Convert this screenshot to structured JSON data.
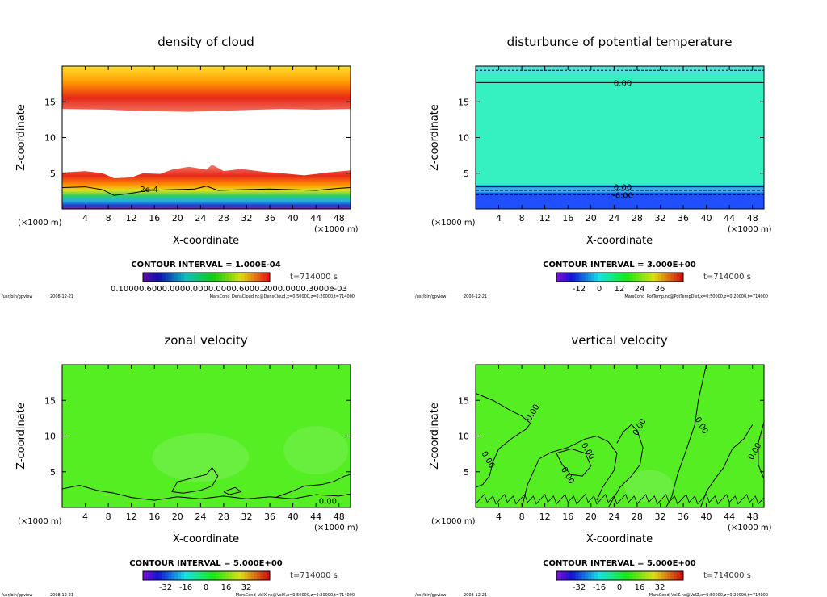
{
  "footer": {
    "path": "/usr/bin/gpview",
    "date": "2008-12-21"
  },
  "colors": {
    "cloud_top": "#ffd400",
    "cloud_band": "#e8281a",
    "cloud_fade": "#ff7a60",
    "theta_top": "#4fe0d8",
    "theta_main": "#35f0c0",
    "theta_low": "#1e50ff",
    "green_field": "#55ee22",
    "green_light": "#80f060",
    "low_blue": "#3020c0"
  },
  "chart_data": [
    {
      "type": "heatmap",
      "title": "density of cloud",
      "xlabel": "X-coordinate",
      "ylabel": "Z-coordinate",
      "xunit": "(×1000 m)",
      "yunit": "(×1000 m)",
      "xlim": [
        0,
        50
      ],
      "ylim": [
        0,
        20
      ],
      "xticks": [
        4,
        8,
        12,
        16,
        20,
        24,
        28,
        32,
        36,
        40,
        44,
        48
      ],
      "yticks": [
        5,
        10,
        15
      ],
      "contour_interval": "CONTOUR INTERVAL = 1.000E-04",
      "time": "t=714000 s",
      "contour_labels": [
        "2e-4"
      ],
      "colorbar_labels": "0.10000.6000.0000.0000.0000.6000.2000.0000.3000e-03",
      "colorbar_colors": [
        "#a020a0",
        "#2020c0",
        "#1f70ff",
        "#20c0c0",
        "#30e030",
        "#e0e020",
        "#ff8000",
        "#e02020",
        "#900000"
      ],
      "footer_file": "MarsCond_DensCloud.nc@DensCloud,x=0:50000,z=0:20000,t=714000"
    },
    {
      "type": "heatmap",
      "title": "disturbunce of potential temperature",
      "xlabel": "X-coordinate",
      "ylabel": "Z-coordinate",
      "xunit": "(×1000 m)",
      "yunit": "(×1000 m)",
      "xlim": [
        0,
        50
      ],
      "ylim": [
        0,
        20
      ],
      "xticks": [
        4,
        8,
        12,
        16,
        20,
        24,
        28,
        32,
        36,
        40,
        44,
        48
      ],
      "yticks": [
        5,
        10,
        15
      ],
      "contour_interval": "CONTOUR INTERVAL = 3.000E+00",
      "time": "t=714000 s",
      "contour_lines": [
        {
          "z": 17.7,
          "label": "0.00"
        },
        {
          "z": 3.1,
          "label": "0.00"
        },
        {
          "z": 2.0,
          "label": "-6.00"
        }
      ],
      "colorbar_ticks": [
        "-12",
        "0",
        "12",
        "24",
        "36"
      ],
      "footer_file": "MarsCond_PotTemp.nc@PotTempDist,x=0:50000,z=0:20000,t=714000"
    },
    {
      "type": "heatmap",
      "title": "zonal velocity",
      "xlabel": "X-coordinate",
      "ylabel": "Z-coordinate",
      "xunit": "(×1000 m)",
      "yunit": "(×1000 m)",
      "xlim": [
        0,
        50
      ],
      "ylim": [
        0,
        20
      ],
      "xticks": [
        4,
        8,
        12,
        16,
        20,
        24,
        28,
        32,
        36,
        40,
        44,
        48
      ],
      "yticks": [
        5,
        10,
        15
      ],
      "contour_interval": "CONTOUR INTERVAL = 5.000E+00",
      "time": "t=714000 s",
      "contour_labels": [
        "0.00"
      ],
      "colorbar_ticks": [
        "-32",
        "-16",
        "0",
        "16",
        "32"
      ],
      "footer_file": "MarsCond_VelX.nc@VelX,x=0:50000,z=0:20000,t=714000"
    },
    {
      "type": "heatmap",
      "title": "vertical velocity",
      "xlabel": "X-coordinate",
      "ylabel": "Z-coordinate",
      "xunit": "(×1000 m)",
      "yunit": "(×1000 m)",
      "xlim": [
        0,
        50
      ],
      "ylim": [
        0,
        20
      ],
      "xticks": [
        4,
        8,
        12,
        16,
        20,
        24,
        28,
        32,
        36,
        40,
        44,
        48
      ],
      "yticks": [
        5,
        10,
        15
      ],
      "contour_interval": "CONTOUR INTERVAL = 5.000E+00",
      "time": "t=714000 s",
      "contour_labels": [
        "0.00",
        "0.00",
        "0.00",
        "0.00",
        "0.00",
        "0.00",
        "0.00"
      ],
      "colorbar_ticks": [
        "-32",
        "-16",
        "0",
        "16",
        "32"
      ],
      "footer_file": "MarsCond_VelZ.nc@VelZ,x=0:50000,z=0:20000,t=714000"
    }
  ]
}
